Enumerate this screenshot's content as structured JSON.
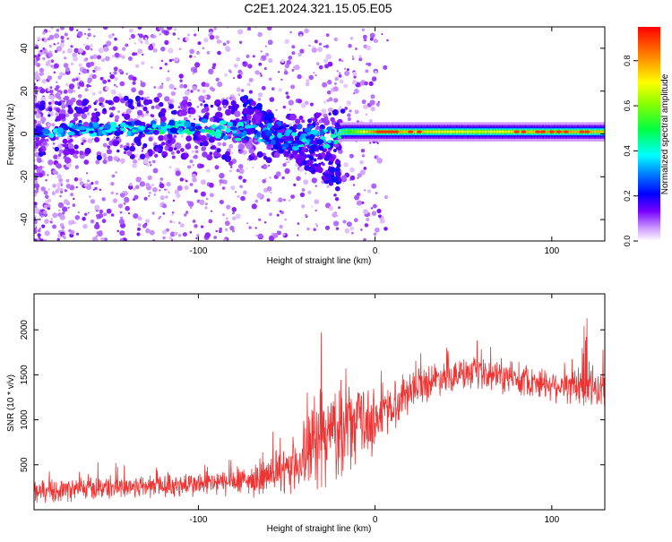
{
  "page_title": "C2E1.2024.321.15.05.E05",
  "chart_data": [
    {
      "type": "heatmap",
      "title": "C2E1.2024.321.15.05.E05",
      "xlabel": "Height of straight line (km)",
      "ylabel": "Frequency (Hz)",
      "xlim": [
        -193,
        130
      ],
      "ylim": [
        -50,
        50
      ],
      "x_ticks": [
        -100,
        0,
        100
      ],
      "x_tick_labels": [
        "-100",
        "0",
        "100"
      ],
      "y_ticks": [
        -40,
        -20,
        0,
        20,
        40
      ],
      "y_tick_labels": [
        "-40",
        "-20",
        "0",
        "20",
        "40"
      ],
      "colorbar": {
        "label": "Normalized spectral amplitude",
        "range": [
          0,
          0.95
        ],
        "ticks": [
          0.0,
          0.2,
          0.4,
          0.6,
          0.8
        ],
        "tick_labels": [
          "0.0",
          "0.2",
          "0.4",
          "0.6",
          "0.8"
        ]
      },
      "ridge": {
        "description_points_x": [
          -193,
          -160,
          -130,
          -100,
          -80,
          -60,
          -45,
          -35,
          -25,
          -18,
          -10,
          0,
          20,
          60,
          100,
          130
        ],
        "center_freq": [
          1,
          2,
          3,
          3,
          2,
          0,
          -2,
          -1,
          0,
          1,
          1,
          1,
          1,
          1,
          1,
          1
        ],
        "peak_amplitude": [
          0.25,
          0.3,
          0.35,
          0.4,
          0.35,
          0.32,
          0.3,
          0.3,
          0.3,
          0.45,
          0.65,
          0.9,
          0.8,
          0.7,
          0.85,
          0.8
        ]
      },
      "grid": false
    },
    {
      "type": "line",
      "xlabel": "Height of straight line (km)",
      "ylabel": "SNR (10 * v/v)",
      "xlim": [
        -193,
        130
      ],
      "ylim": [
        0,
        2400
      ],
      "x_ticks": [
        -100,
        0,
        100
      ],
      "x_tick_labels": [
        "-100",
        "0",
        "100"
      ],
      "y_ticks": [
        500,
        1000,
        1500,
        2000
      ],
      "y_tick_labels": [
        "500",
        "1000",
        "1500",
        "2000"
      ],
      "series": [
        {
          "color": "#ee3333",
          "trend_x": [
            -193,
            -150,
            -100,
            -70,
            -50,
            -40,
            -30,
            -20,
            -10,
            0,
            10,
            20,
            40,
            60,
            80,
            100,
            115,
            120,
            130
          ],
          "trend_y": [
            200,
            250,
            280,
            320,
            420,
            600,
            800,
            900,
            950,
            1000,
            1150,
            1350,
            1500,
            1500,
            1450,
            1400,
            1350,
            1350,
            1350
          ],
          "noise_amplitude": [
            120,
            130,
            140,
            160,
            250,
            400,
            550,
            500,
            450,
            350,
            280,
            220,
            180,
            180,
            170,
            180,
            200,
            300,
            180
          ]
        }
      ],
      "grid": false
    }
  ]
}
